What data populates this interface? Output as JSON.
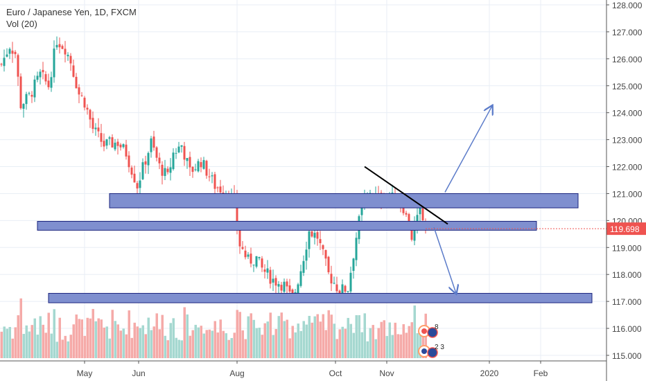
{
  "chart_data": {
    "type": "candlestick",
    "title": "Euro / Japanese Yen, 1D, FXCM",
    "volume_label": "Vol (20)",
    "ylim": [
      114.8,
      128.2
    ],
    "yticks": [
      128,
      127,
      126,
      125,
      124,
      123,
      122,
      121,
      120,
      119,
      118,
      117,
      116,
      115
    ],
    "ytick_labels": [
      "128.000",
      "127.000",
      "126.000",
      "125.000",
      "124.000",
      "123.000",
      "122.000",
      "121.000",
      "120.000",
      "119.000",
      "118.000",
      "117.000",
      "116.000",
      "115.000"
    ],
    "xticks": [
      {
        "label": "May",
        "index": 30
      },
      {
        "label": "Jun",
        "index": 49.5
      },
      {
        "label": "Aug",
        "index": 85
      },
      {
        "label": "Oct",
        "index": 120.5
      },
      {
        "label": "Nov",
        "index": 139
      },
      {
        "label": "2020",
        "index": 176
      },
      {
        "label": "Feb",
        "index": 194.5
      }
    ],
    "x_range_index": [
      0,
      218
    ],
    "close_keypoints": [
      [
        0,
        125.8
      ],
      [
        3,
        126.5
      ],
      [
        5,
        126.2
      ],
      [
        7,
        124.3
      ],
      [
        10,
        124.6
      ],
      [
        14,
        125.4
      ],
      [
        17,
        125.0
      ],
      [
        20,
        126.7
      ],
      [
        23,
        126.4
      ],
      [
        25,
        125.9
      ],
      [
        28,
        124.7
      ],
      [
        30,
        124.4
      ],
      [
        33,
        123.4
      ],
      [
        37,
        122.8
      ],
      [
        42,
        122.9
      ],
      [
        45,
        122.5
      ],
      [
        49,
        121.3
      ],
      [
        54,
        122.9
      ],
      [
        57,
        122.0
      ],
      [
        60,
        121.6
      ],
      [
        62,
        122.5
      ],
      [
        65,
        122.8
      ],
      [
        68,
        121.8
      ],
      [
        72,
        122.2
      ],
      [
        77,
        121.3
      ],
      [
        82,
        121.0
      ],
      [
        84,
        120.6
      ],
      [
        86,
        119.1
      ],
      [
        89,
        118.5
      ],
      [
        92,
        118.6
      ],
      [
        94,
        118.2
      ],
      [
        98,
        117.8
      ],
      [
        102,
        117.6
      ],
      [
        105,
        117.0
      ],
      [
        108,
        118.2
      ],
      [
        111,
        119.6
      ],
      [
        114,
        119.4
      ],
      [
        118,
        118.0
      ],
      [
        122,
        117.4
      ],
      [
        125,
        117.5
      ],
      [
        128,
        119.4
      ],
      [
        130,
        120.5
      ],
      [
        133,
        121.1
      ],
      [
        136,
        120.8
      ],
      [
        140,
        120.9
      ],
      [
        145,
        120.5
      ],
      [
        148,
        119.4
      ],
      [
        151,
        120.3
      ],
      [
        153,
        119.7
      ]
    ],
    "last_price": "119.698",
    "zones": [
      {
        "from_index": 39,
        "to_index": 208,
        "low": 120.47,
        "high": 121.0
      },
      {
        "from_index": 13,
        "to_index": 193,
        "low": 119.64,
        "high": 119.97
      },
      {
        "from_index": 17,
        "to_index": 213,
        "low": 116.95,
        "high": 117.3
      }
    ],
    "trendline": {
      "from": [
        131,
        122.0
      ],
      "to": [
        161,
        119.87
      ]
    },
    "arrows": [
      {
        "from": [
          160,
          121.05
        ],
        "to": [
          177,
          124.25
        ]
      },
      {
        "from": [
          156,
          119.75
        ],
        "to": [
          164,
          117.3
        ]
      }
    ],
    "event_badges": [
      "8",
      "2 3"
    ],
    "colors": {
      "up": "#26a69a",
      "down": "#ef5350",
      "zone": "#7f8fcf",
      "zone_border": "#1a237e",
      "arrow": "#5b7bc9",
      "price_label": "#ef5350"
    }
  }
}
